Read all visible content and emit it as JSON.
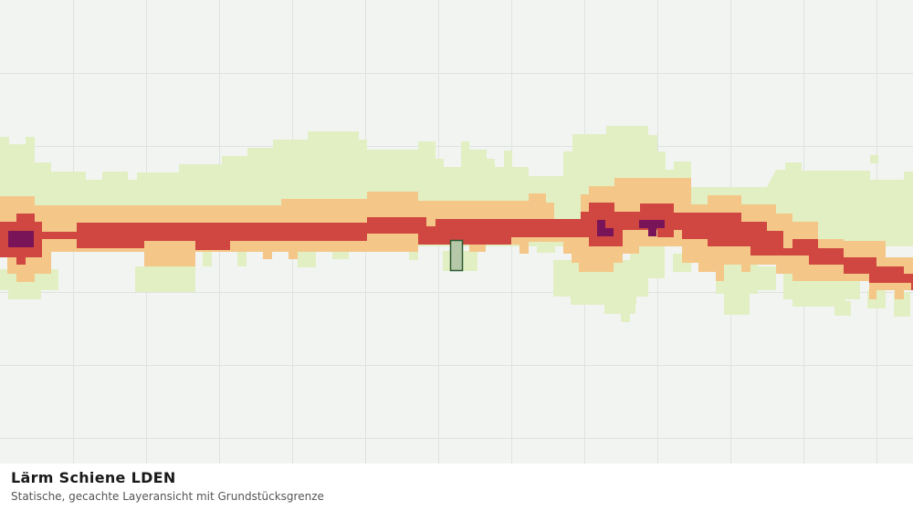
{
  "header": {
    "title": "Lärm Schiene LDEN",
    "subtitle": "Statische, gecachte Layeransicht mit Grundstücksgrenze"
  }
}
